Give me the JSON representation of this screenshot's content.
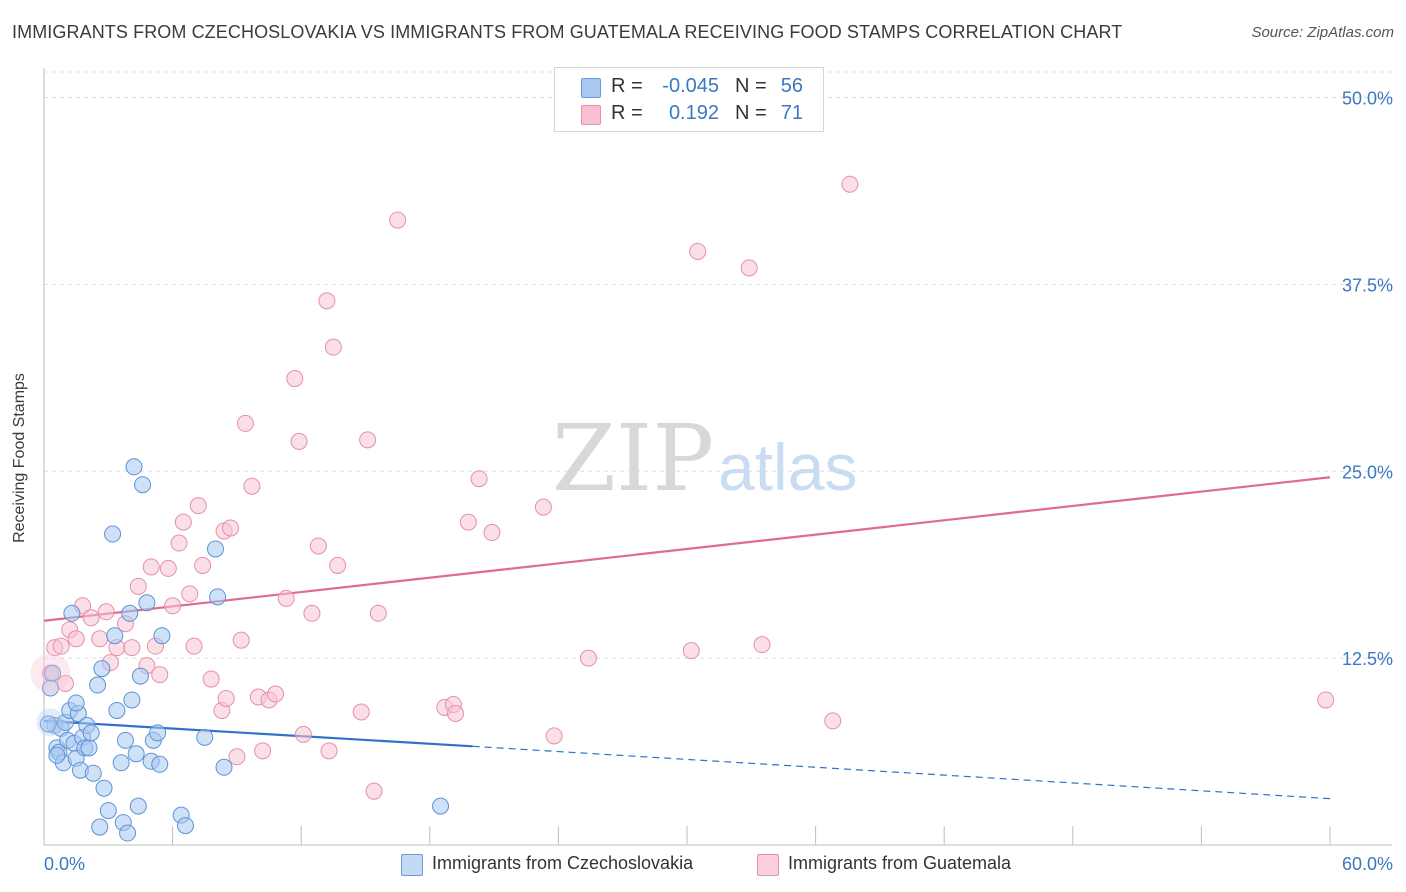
{
  "title": "IMMIGRANTS FROM CZECHOSLOVAKIA VS IMMIGRANTS FROM GUATEMALA RECEIVING FOOD STAMPS CORRELATION CHART",
  "source": "Source: ZipAtlas.com",
  "watermark": {
    "zip": "ZIP",
    "atlas": "atlas"
  },
  "legend": {
    "rows": [
      {
        "r_label": "R =",
        "r_value": "-0.045",
        "n_label": "N =",
        "n_value": "56",
        "color": "#a8c8f0",
        "border": "#6a9ad8"
      },
      {
        "r_label": "R =",
        "r_value": "0.192",
        "n_label": "N =",
        "n_value": "71",
        "color": "#f8c0d0",
        "border": "#e890aa"
      }
    ]
  },
  "bottom_legend": {
    "items": [
      {
        "label": "Immigrants from Czechoslovakia",
        "color": "#c4d9f3",
        "border": "#6a9ad8"
      },
      {
        "label": "Immigrants from Guatemala",
        "color": "#f9d0dc",
        "border": "#e890aa"
      }
    ]
  },
  "chart_data": {
    "type": "scatter",
    "title": "IMMIGRANTS FROM CZECHOSLOVAKIA VS IMMIGRANTS FROM GUATEMALA RECEIVING FOOD STAMPS CORRELATION CHART",
    "xlabel": "",
    "ylabel": "Receiving Food Stamps",
    "xlim": [
      0,
      60
    ],
    "ylim": [
      0,
      50
    ],
    "x_tick_labels": [
      "0.0%",
      "60.0%"
    ],
    "y_tick_labels": [
      "12.5%",
      "25.0%",
      "37.5%",
      "50.0%"
    ],
    "y_ticks": [
      12.5,
      25.0,
      37.5,
      50.0
    ],
    "grid": true,
    "legend_position": "top-center",
    "colors": {
      "czech_fill": "#a8c8f0",
      "czech_stroke": "#5e93d6",
      "czech_line": "#2f72c8",
      "guat_fill": "#f8c4d4",
      "guat_stroke": "#e68fab",
      "guat_line": "#e06a92",
      "tick_text": "#3a78c2"
    },
    "series": [
      {
        "name": "Immigrants from Czechoslovakia",
        "trend": {
          "x0": 0,
          "y0": 8.3,
          "x1": 20,
          "y1": 6.6,
          "dash_to_x": 60,
          "dash_to_y": 3.1
        },
        "points": [
          [
            0.3,
            10.5
          ],
          [
            0.4,
            11.5
          ],
          [
            0.5,
            8.0
          ],
          [
            0.6,
            6.5
          ],
          [
            0.7,
            6.2
          ],
          [
            0.8,
            7.8
          ],
          [
            0.9,
            5.5
          ],
          [
            1.0,
            8.2
          ],
          [
            1.1,
            7.0
          ],
          [
            1.2,
            9.0
          ],
          [
            1.3,
            15.5
          ],
          [
            1.4,
            6.8
          ],
          [
            1.5,
            5.8
          ],
          [
            1.6,
            8.8
          ],
          [
            1.7,
            5.0
          ],
          [
            1.8,
            7.2
          ],
          [
            1.9,
            6.5
          ],
          [
            2.0,
            8.0
          ],
          [
            2.1,
            6.5
          ],
          [
            2.2,
            7.5
          ],
          [
            2.3,
            4.8
          ],
          [
            2.5,
            10.7
          ],
          [
            2.6,
            1.2
          ],
          [
            2.7,
            11.8
          ],
          [
            2.8,
            3.8
          ],
          [
            3.0,
            2.3
          ],
          [
            3.2,
            20.8
          ],
          [
            3.3,
            14.0
          ],
          [
            3.4,
            9.0
          ],
          [
            3.6,
            5.5
          ],
          [
            3.7,
            1.5
          ],
          [
            3.8,
            7.0
          ],
          [
            3.9,
            0.8
          ],
          [
            4.0,
            15.5
          ],
          [
            4.1,
            9.7
          ],
          [
            4.2,
            25.3
          ],
          [
            4.3,
            6.1
          ],
          [
            4.4,
            2.6
          ],
          [
            4.5,
            11.3
          ],
          [
            4.6,
            24.1
          ],
          [
            4.8,
            16.2
          ],
          [
            5.0,
            5.6
          ],
          [
            5.1,
            7.0
          ],
          [
            5.3,
            7.5
          ],
          [
            5.4,
            5.4
          ],
          [
            5.5,
            14.0
          ],
          [
            6.4,
            2.0
          ],
          [
            6.6,
            1.3
          ],
          [
            7.5,
            7.2
          ],
          [
            8.0,
            19.8
          ],
          [
            8.1,
            16.6
          ],
          [
            8.4,
            5.2
          ],
          [
            18.5,
            2.6
          ],
          [
            0.2,
            8.1
          ],
          [
            0.6,
            6.0
          ],
          [
            1.5,
            9.5
          ]
        ]
      },
      {
        "name": "Immigrants from Guatemala",
        "trend": {
          "x0": 0,
          "y0": 15.0,
          "x1": 60,
          "y1": 24.6
        },
        "points": [
          [
            0.3,
            11.5
          ],
          [
            0.5,
            13.2
          ],
          [
            0.8,
            13.3
          ],
          [
            1.2,
            14.4
          ],
          [
            1.5,
            13.8
          ],
          [
            1.8,
            16.0
          ],
          [
            2.2,
            15.2
          ],
          [
            2.6,
            13.8
          ],
          [
            2.9,
            15.6
          ],
          [
            3.1,
            12.2
          ],
          [
            3.4,
            13.2
          ],
          [
            3.8,
            14.8
          ],
          [
            4.1,
            13.2
          ],
          [
            4.4,
            17.3
          ],
          [
            4.8,
            12.0
          ],
          [
            5.0,
            18.6
          ],
          [
            5.2,
            13.3
          ],
          [
            5.4,
            11.4
          ],
          [
            5.8,
            18.5
          ],
          [
            6.0,
            16.0
          ],
          [
            6.3,
            20.2
          ],
          [
            6.5,
            21.6
          ],
          [
            6.8,
            16.8
          ],
          [
            7.0,
            13.3
          ],
          [
            7.2,
            22.7
          ],
          [
            7.4,
            18.7
          ],
          [
            7.8,
            11.1
          ],
          [
            8.3,
            9.0
          ],
          [
            8.4,
            21.0
          ],
          [
            8.5,
            9.8
          ],
          [
            8.7,
            21.2
          ],
          [
            9.0,
            5.9
          ],
          [
            9.2,
            13.7
          ],
          [
            9.4,
            28.2
          ],
          [
            9.7,
            24.0
          ],
          [
            10.0,
            9.9
          ],
          [
            10.2,
            6.3
          ],
          [
            10.5,
            9.7
          ],
          [
            10.8,
            10.1
          ],
          [
            11.3,
            16.5
          ],
          [
            11.7,
            31.2
          ],
          [
            11.9,
            27.0
          ],
          [
            12.1,
            7.4
          ],
          [
            12.5,
            15.5
          ],
          [
            12.8,
            20.0
          ],
          [
            13.2,
            36.4
          ],
          [
            13.3,
            6.3
          ],
          [
            13.5,
            33.3
          ],
          [
            13.7,
            18.7
          ],
          [
            14.8,
            8.9
          ],
          [
            15.1,
            27.1
          ],
          [
            15.4,
            3.6
          ],
          [
            15.6,
            15.5
          ],
          [
            16.5,
            41.8
          ],
          [
            18.7,
            9.2
          ],
          [
            19.1,
            9.4
          ],
          [
            19.2,
            8.8
          ],
          [
            19.8,
            21.6
          ],
          [
            20.3,
            24.5
          ],
          [
            20.9,
            20.9
          ],
          [
            23.3,
            22.6
          ],
          [
            23.8,
            7.3
          ],
          [
            25.4,
            12.5
          ],
          [
            30.2,
            13.0
          ],
          [
            30.5,
            39.7
          ],
          [
            32.9,
            38.6
          ],
          [
            33.5,
            13.4
          ],
          [
            36.8,
            8.3
          ],
          [
            37.6,
            44.2
          ],
          [
            59.8,
            9.7
          ],
          [
            1.0,
            10.8
          ]
        ]
      }
    ]
  }
}
